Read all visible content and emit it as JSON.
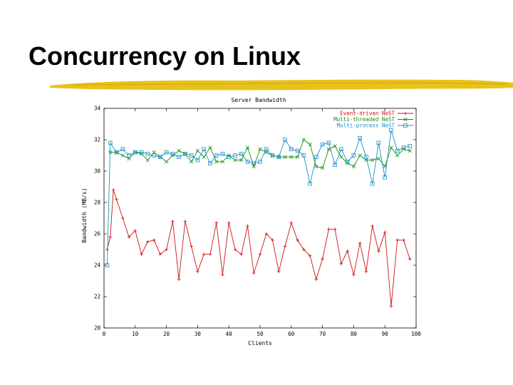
{
  "slide": {
    "title": "Concurrency on Linux"
  },
  "colors": {
    "rule": "#e8c21a",
    "rule_dark": "#d4a90e"
  },
  "chart_data": {
    "type": "line",
    "title": "Server Bandwidth",
    "xlabel": "Clients",
    "ylabel": "Bandwidth (MB/s)",
    "xlim": [
      0,
      100
    ],
    "ylim": [
      20,
      34
    ],
    "xticks": [
      0,
      10,
      20,
      30,
      40,
      50,
      60,
      70,
      80,
      90,
      100
    ],
    "yticks": [
      20,
      22,
      24,
      26,
      28,
      30,
      32,
      34
    ],
    "grid": false,
    "legend_position": "top-right",
    "series": [
      {
        "name": "Event-driven NeST",
        "color": "#d01010",
        "marker": "plus",
        "x": [
          1,
          2,
          3,
          4,
          6,
          8,
          10,
          12,
          14,
          16,
          18,
          20,
          22,
          24,
          26,
          28,
          30,
          32,
          34,
          36,
          38,
          40,
          42,
          44,
          46,
          48,
          50,
          52,
          54,
          56,
          58,
          60,
          62,
          64,
          66,
          68,
          70,
          72,
          74,
          76,
          78,
          80,
          82,
          84,
          86,
          88,
          90,
          92,
          94,
          96,
          98
        ],
        "y": [
          25.0,
          25.8,
          28.8,
          28.2,
          27.0,
          25.8,
          26.2,
          24.7,
          25.5,
          25.6,
          24.7,
          25.0,
          26.8,
          23.1,
          26.8,
          25.2,
          23.6,
          24.7,
          24.7,
          26.7,
          23.4,
          26.7,
          25.0,
          24.7,
          26.5,
          23.5,
          24.7,
          26.0,
          25.6,
          23.6,
          25.2,
          26.7,
          25.6,
          25.0,
          24.6,
          23.1,
          24.4,
          26.3,
          26.3,
          24.1,
          24.9,
          23.4,
          25.4,
          23.6,
          26.5,
          24.9,
          26.1,
          21.4,
          25.6,
          25.6,
          24.4
        ]
      },
      {
        "name": "Multi-threaded NeST",
        "color": "#109010",
        "marker": "x",
        "x": [
          2,
          4,
          6,
          8,
          10,
          12,
          14,
          16,
          18,
          20,
          22,
          24,
          26,
          28,
          30,
          32,
          34,
          36,
          38,
          40,
          42,
          44,
          46,
          48,
          50,
          52,
          54,
          56,
          58,
          60,
          62,
          64,
          66,
          68,
          70,
          72,
          74,
          76,
          78,
          80,
          82,
          84,
          86,
          88,
          90,
          92,
          94,
          96,
          98
        ],
        "y": [
          31.2,
          31.2,
          31.0,
          30.8,
          31.2,
          31.1,
          30.7,
          31.2,
          30.9,
          30.6,
          31.0,
          31.3,
          31.1,
          30.6,
          31.3,
          30.9,
          31.5,
          30.6,
          30.6,
          31.0,
          30.7,
          30.7,
          31.5,
          30.3,
          31.4,
          31.2,
          31.0,
          30.9,
          30.9,
          30.9,
          30.9,
          32.0,
          31.7,
          30.3,
          30.2,
          31.4,
          31.6,
          30.9,
          30.5,
          30.3,
          31.0,
          30.7,
          30.7,
          30.8,
          30.3,
          31.5,
          31.0,
          31.4,
          31.3
        ]
      },
      {
        "name": "Multi-process NeST",
        "color": "#1a8fc8",
        "marker": "square",
        "x": [
          1,
          2,
          4,
          6,
          8,
          10,
          12,
          14,
          16,
          18,
          20,
          22,
          24,
          26,
          28,
          30,
          32,
          34,
          36,
          38,
          40,
          42,
          44,
          46,
          48,
          50,
          52,
          54,
          56,
          58,
          60,
          62,
          64,
          66,
          68,
          70,
          72,
          74,
          76,
          78,
          80,
          82,
          84,
          86,
          88,
          90,
          92,
          94,
          96,
          98
        ],
        "y": [
          24.0,
          31.8,
          31.2,
          31.4,
          31.0,
          31.2,
          31.2,
          31.1,
          31.0,
          30.9,
          31.2,
          31.1,
          30.9,
          31.1,
          31.0,
          30.7,
          31.4,
          30.5,
          31.0,
          31.1,
          30.9,
          31.0,
          31.1,
          30.6,
          30.5,
          30.6,
          31.4,
          31.0,
          30.9,
          32.0,
          31.4,
          31.3,
          31.0,
          29.2,
          30.9,
          31.7,
          31.8,
          30.4,
          31.4,
          30.6,
          31.0,
          32.1,
          30.9,
          29.2,
          31.8,
          29.6,
          32.6,
          31.3,
          31.5,
          31.6
        ]
      }
    ]
  }
}
